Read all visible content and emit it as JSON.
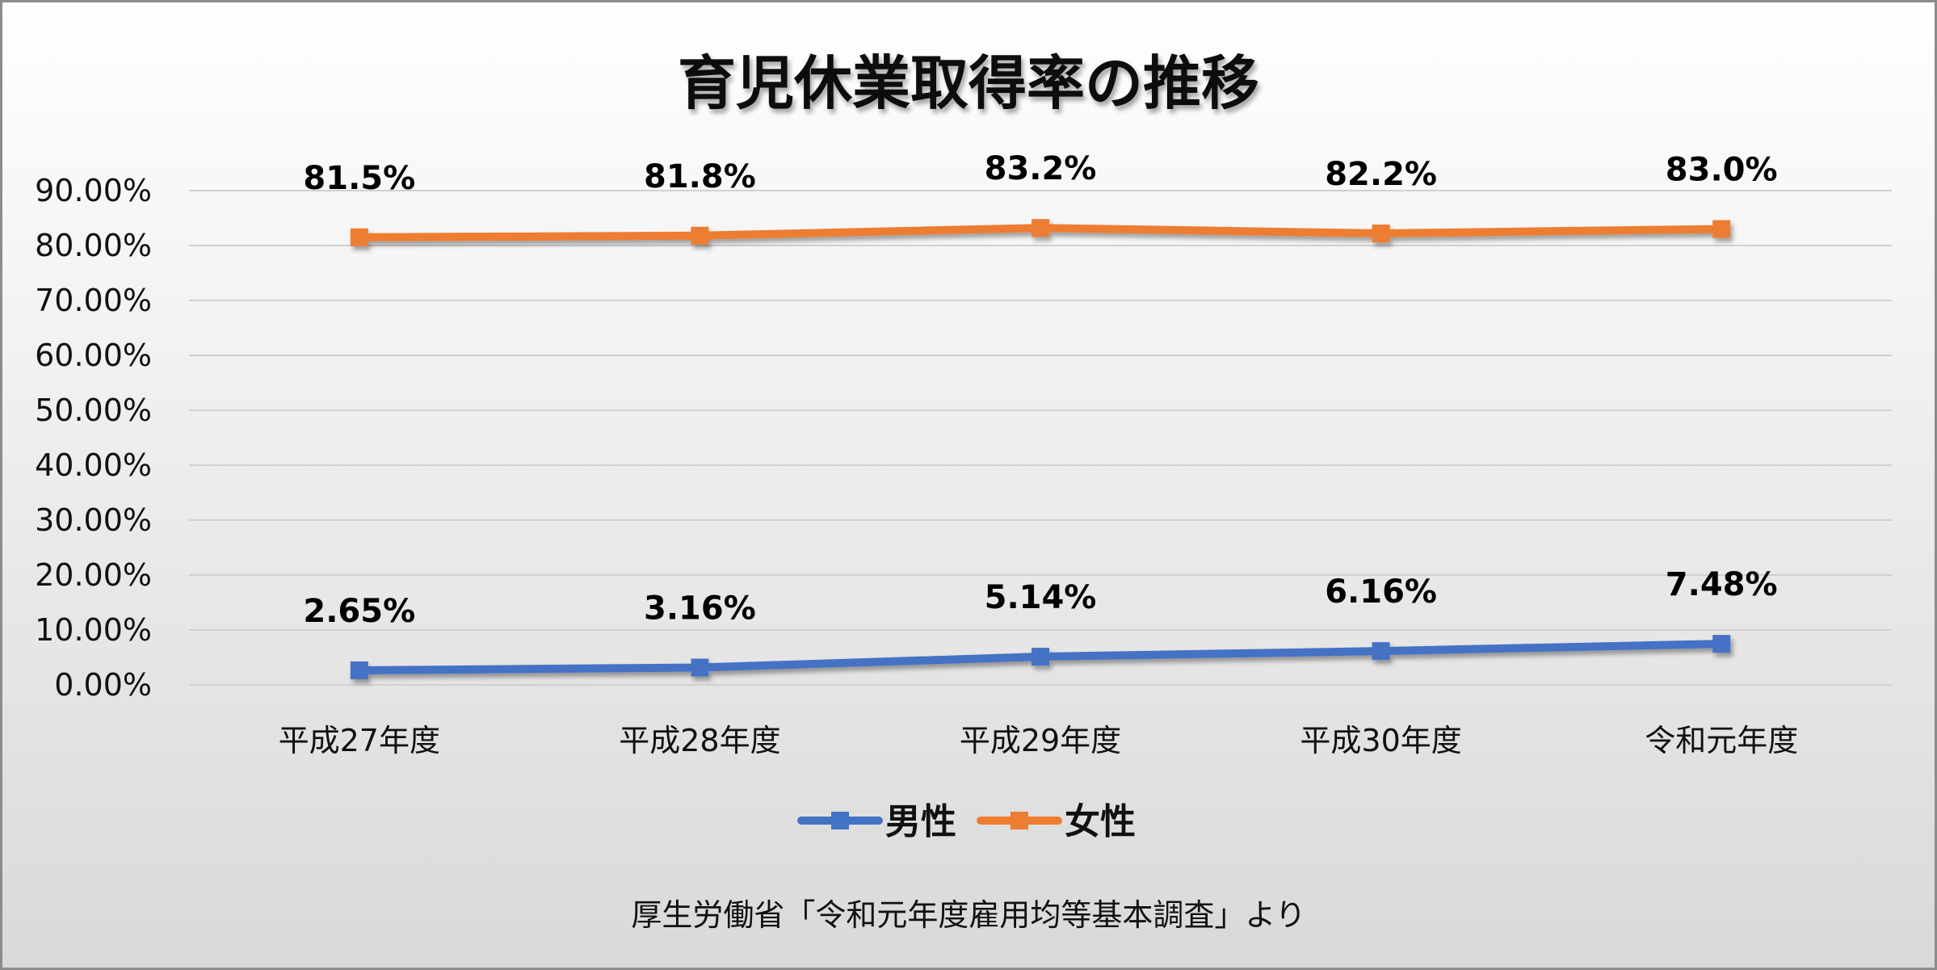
{
  "chart_data": {
    "type": "line",
    "title": "育児休業取得率の推移",
    "categories": [
      "平成27年度",
      "平成28年度",
      "平成29年度",
      "平成30年度",
      "令和元年度"
    ],
    "series": [
      {
        "name": "男性",
        "color": "#4472C4",
        "values": [
          2.65,
          3.16,
          5.14,
          6.16,
          7.48
        ],
        "labels": [
          "2.65%",
          "3.16%",
          "5.14%",
          "6.16%",
          "7.48%"
        ]
      },
      {
        "name": "女性",
        "color": "#ED7D31",
        "values": [
          81.5,
          81.8,
          83.2,
          82.2,
          83.0
        ],
        "labels": [
          "81.5%",
          "81.8%",
          "83.2%",
          "82.2%",
          "83.0%"
        ]
      }
    ],
    "ylim": [
      0,
      90
    ],
    "yticks": [
      0,
      10,
      20,
      30,
      40,
      50,
      60,
      70,
      80,
      90
    ],
    "ytick_labels": [
      "0.00%",
      "10.00%",
      "20.00%",
      "30.00%",
      "40.00%",
      "50.00%",
      "60.00%",
      "70.00%",
      "80.00%",
      "90.00%"
    ],
    "grid": true,
    "legend_position": "bottom",
    "source_note": "厚生労働省「令和元年度雇用均等基本調査」より"
  }
}
